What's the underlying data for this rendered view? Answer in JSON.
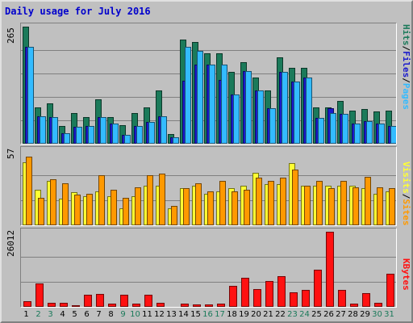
{
  "title": "Daily usage for July 2016",
  "colors": {
    "hits": "#1b7a5a",
    "files": "#1a1acc",
    "pages": "#33bbff",
    "visits": "#ffff33",
    "sites": "#ff9900",
    "kbytes": "#ff1111",
    "weekend_label": "#1b7a5a"
  },
  "legend": {
    "hits_panel": [
      "Hits",
      "Files",
      "Pages"
    ],
    "sites_panel": [
      "Visits",
      "Sites"
    ],
    "kbytes_panel": [
      "KBytes"
    ],
    "separator": "/"
  },
  "chart_data": [
    {
      "type": "bar",
      "title": "Daily usage for July 2016",
      "ymax_label": "265",
      "ylim": [
        0,
        265
      ],
      "grid": true,
      "categories": [
        "1",
        "2",
        "3",
        "4",
        "5",
        "6",
        "7",
        "8",
        "9",
        "10",
        "11",
        "12",
        "13",
        "14",
        "15",
        "16",
        "17",
        "18",
        "19",
        "20",
        "21",
        "22",
        "23",
        "24",
        "25",
        "26",
        "27",
        "28",
        "29",
        "30",
        "31"
      ],
      "series": [
        {
          "name": "Hits",
          "values": [
            265,
            82,
            92,
            40,
            70,
            60,
            100,
            60,
            42,
            70,
            82,
            120,
            22,
            235,
            230,
            205,
            205,
            163,
            185,
            150,
            120,
            195,
            172,
            172,
            82,
            82,
            96,
            75,
            78,
            74,
            75
          ]
        },
        {
          "name": "Files",
          "values": [
            220,
            62,
            60,
            24,
            38,
            40,
            60,
            45,
            20,
            40,
            50,
            62,
            14,
            143,
            180,
            180,
            145,
            112,
            165,
            120,
            80,
            162,
            140,
            150,
            58,
            80,
            68,
            45,
            52,
            45,
            40
          ]
        },
        {
          "name": "Pages",
          "values": [
            220,
            62,
            60,
            24,
            38,
            40,
            60,
            45,
            20,
            40,
            50,
            62,
            14,
            220,
            210,
            180,
            180,
            112,
            165,
            120,
            80,
            162,
            140,
            150,
            58,
            70,
            68,
            45,
            52,
            45,
            40
          ]
        }
      ]
    },
    {
      "type": "bar",
      "ymax_label": "57",
      "ylim": [
        0,
        57
      ],
      "grid": true,
      "categories": [
        "1",
        "2",
        "3",
        "4",
        "5",
        "6",
        "7",
        "8",
        "9",
        "10",
        "11",
        "12",
        "13",
        "14",
        "15",
        "16",
        "17",
        "18",
        "19",
        "20",
        "21",
        "22",
        "23",
        "24",
        "25",
        "26",
        "27",
        "28",
        "29",
        "30",
        "31"
      ],
      "series": [
        {
          "name": "Visits",
          "values": [
            48,
            27,
            34,
            20,
            25,
            22,
            26,
            22,
            13,
            22,
            30,
            30,
            13,
            28,
            30,
            24,
            26,
            28,
            30,
            40,
            31,
            31,
            47,
            30,
            30,
            30,
            30,
            30,
            28,
            24,
            26
          ]
        },
        {
          "name": "Sites",
          "values": [
            52,
            21,
            35,
            32,
            23,
            24,
            38,
            27,
            21,
            29,
            38,
            39,
            15,
            28,
            32,
            26,
            34,
            26,
            27,
            36,
            34,
            36,
            42,
            30,
            34,
            28,
            34,
            29,
            37,
            29,
            28
          ]
        }
      ]
    },
    {
      "type": "bar",
      "ymax_label": "26012",
      "ylim": [
        0,
        26012
      ],
      "grid": true,
      "categories": [
        "1",
        "2",
        "3",
        "4",
        "5",
        "6",
        "7",
        "8",
        "9",
        "10",
        "11",
        "12",
        "13",
        "14",
        "15",
        "16",
        "17",
        "18",
        "19",
        "20",
        "21",
        "22",
        "23",
        "24",
        "25",
        "26",
        "27",
        "28",
        "29",
        "30",
        "31"
      ],
      "series": [
        {
          "name": "KBytes",
          "values": [
            1900,
            8100,
            1300,
            1300,
            600,
            4100,
            4600,
            1100,
            4100,
            1100,
            4100,
            1400,
            300,
            1100,
            700,
            700,
            1100,
            7300,
            10000,
            6200,
            9000,
            10700,
            5100,
            6000,
            13000,
            26012,
            6000,
            1100,
            4800,
            1500,
            11600
          ]
        }
      ]
    }
  ],
  "x_labels": [
    {
      "text": "1",
      "weekend": false
    },
    {
      "text": "2",
      "weekend": true
    },
    {
      "text": "3",
      "weekend": true
    },
    {
      "text": "4",
      "weekend": false
    },
    {
      "text": "5",
      "weekend": false
    },
    {
      "text": "6",
      "weekend": false
    },
    {
      "text": "7",
      "weekend": false
    },
    {
      "text": "8",
      "weekend": false
    },
    {
      "text": "9",
      "weekend": true
    },
    {
      "text": "10",
      "weekend": true
    },
    {
      "text": "11",
      "weekend": false
    },
    {
      "text": "12",
      "weekend": false
    },
    {
      "text": "13",
      "weekend": false
    },
    {
      "text": "14",
      "weekend": false
    },
    {
      "text": "15",
      "weekend": false
    },
    {
      "text": "16",
      "weekend": true
    },
    {
      "text": "17",
      "weekend": true
    },
    {
      "text": "18",
      "weekend": false
    },
    {
      "text": "19",
      "weekend": false
    },
    {
      "text": "20",
      "weekend": false
    },
    {
      "text": "21",
      "weekend": false
    },
    {
      "text": "22",
      "weekend": false
    },
    {
      "text": "23",
      "weekend": true
    },
    {
      "text": "24",
      "weekend": true
    },
    {
      "text": "25",
      "weekend": false
    },
    {
      "text": "26",
      "weekend": false
    },
    {
      "text": "27",
      "weekend": false
    },
    {
      "text": "28",
      "weekend": false
    },
    {
      "text": "29",
      "weekend": false
    },
    {
      "text": "30",
      "weekend": true
    },
    {
      "text": "31",
      "weekend": true
    }
  ]
}
